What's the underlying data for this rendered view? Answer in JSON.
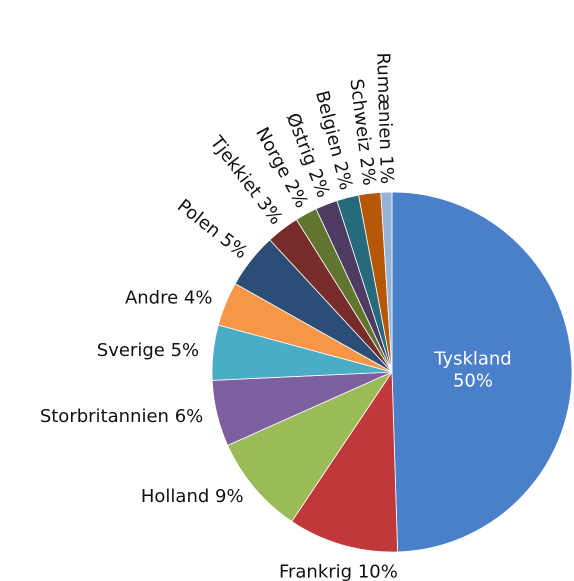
{
  "chart_data": {
    "type": "pie",
    "categories": [
      "Tyskland",
      "Frankrig",
      "Holland",
      "Storbritannien",
      "Sverige",
      "Andre",
      "Polen",
      "Tjekkiet",
      "Norge",
      "Østrig",
      "Belgien",
      "Schweiz",
      "Rumænien"
    ],
    "values": [
      50,
      10,
      9,
      6,
      5,
      4,
      5,
      3,
      2,
      2,
      2,
      2,
      1
    ],
    "value_labels": [
      "50%",
      "10%",
      "9%",
      "6%",
      "5%",
      "4%",
      "5%",
      "3%",
      "2%",
      "2%",
      "2%",
      "2%",
      "1%"
    ],
    "colors": [
      "#4a7fc9",
      "#c0383a",
      "#9bbb59",
      "#7d5fa0",
      "#4bacc6",
      "#f79646",
      "#2c4d75",
      "#772c2a",
      "#5f7530",
      "#4d3b62",
      "#276a7c",
      "#b65708",
      "#95b3d7"
    ]
  }
}
